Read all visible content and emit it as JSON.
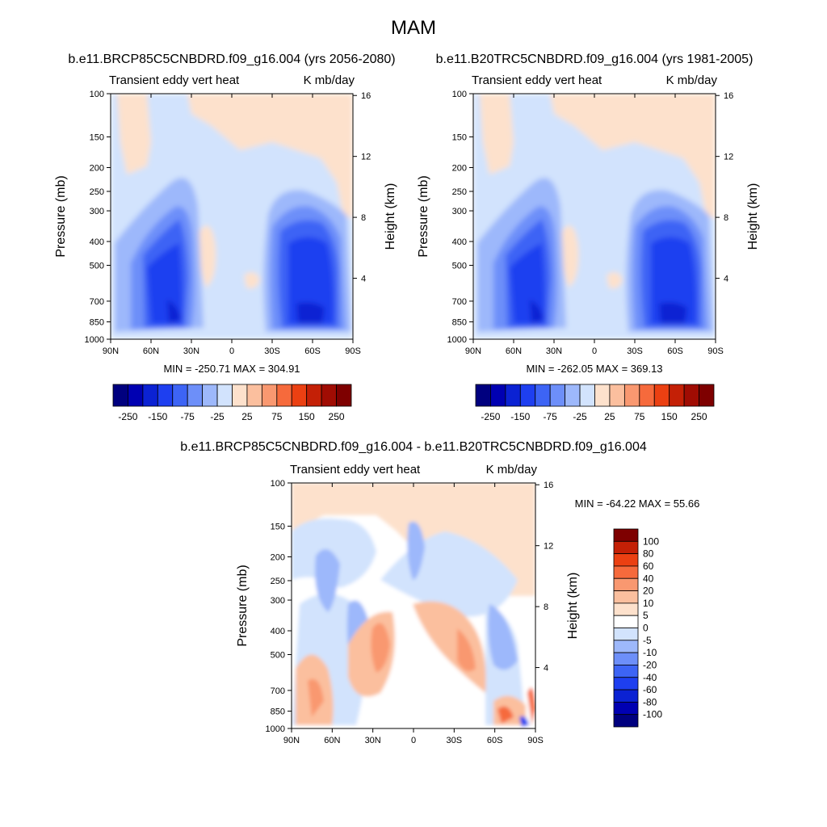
{
  "figure": {
    "title": "MAM"
  },
  "colors": {
    "levels_main": [
      "#00007f",
      "#0000b2",
      "#0b22d3",
      "#1e3ff0",
      "#3d64f5",
      "#6d8ff9",
      "#9db8fb",
      "#d2e3fd",
      "#fde1cc",
      "#fbbf9e",
      "#f99870",
      "#f66a3c",
      "#eb4012",
      "#c42006",
      "#a00c03",
      "#7e0000"
    ],
    "levels_diff": [
      "#00007f",
      "#0000b2",
      "#0b22d3",
      "#1e3ff0",
      "#3d64f5",
      "#6d8ff9",
      "#9db8fb",
      "#d2e3fd",
      "#ffffff",
      "#fde1cc",
      "#fbbf9e",
      "#f99870",
      "#f66a3c",
      "#eb4012",
      "#c42006",
      "#7e0000"
    ]
  },
  "chart_data": [
    {
      "type": "heatmap",
      "id": "left",
      "title": "b.e11.BRCP85C5CNBDRD.f09_g16.004 (yrs 2056-2080)",
      "subtitle_left": "Transient eddy vert heat",
      "subtitle_right": "K mb/day",
      "ylabel": "Pressure (mb)",
      "ylabel_right": "Height (km)",
      "x_ticks": [
        "90N",
        "60N",
        "30N",
        "0",
        "30S",
        "60S",
        "90S"
      ],
      "y_ticks": [
        "100",
        "150",
        "200",
        "250",
        "300",
        "400",
        "500",
        "700",
        "850",
        "1000"
      ],
      "y_right_ticks": [
        "16",
        "12",
        "8",
        "4"
      ],
      "minmax": "MIN = -250.71  MAX = 304.91",
      "colorbar_labels": [
        "-250",
        "-150",
        "-75",
        "-25",
        "25",
        "75",
        "150",
        "250"
      ],
      "value_range": [
        -250.71,
        304.91
      ]
    },
    {
      "type": "heatmap",
      "id": "right",
      "title": "b.e11.B20TRC5CNBDRD.f09_g16.004 (yrs 1981-2005)",
      "subtitle_left": "Transient eddy vert heat",
      "subtitle_right": "K mb/day",
      "ylabel": "Pressure (mb)",
      "ylabel_right": "Height (km)",
      "x_ticks": [
        "90N",
        "60N",
        "30N",
        "0",
        "30S",
        "60S",
        "90S"
      ],
      "y_ticks": [
        "100",
        "150",
        "200",
        "250",
        "300",
        "400",
        "500",
        "700",
        "850",
        "1000"
      ],
      "y_right_ticks": [
        "16",
        "12",
        "8",
        "4"
      ],
      "minmax": "MIN = -262.05  MAX = 369.13",
      "colorbar_labels": [
        "-250",
        "-150",
        "-75",
        "-25",
        "25",
        "75",
        "150",
        "250"
      ],
      "value_range": [
        -262.05,
        369.13
      ]
    },
    {
      "type": "heatmap",
      "id": "diff",
      "title": "b.e11.BRCP85C5CNBDRD.f09_g16.004 - b.e11.B20TRC5CNBDRD.f09_g16.004",
      "subtitle_left": "Transient eddy vert heat",
      "subtitle_right": "K mb/day",
      "ylabel": "Pressure (mb)",
      "ylabel_right": "Height (km)",
      "x_ticks": [
        "90N",
        "60N",
        "30N",
        "0",
        "30S",
        "60S",
        "90S"
      ],
      "y_ticks": [
        "100",
        "150",
        "200",
        "250",
        "300",
        "400",
        "500",
        "700",
        "850",
        "1000"
      ],
      "y_right_ticks": [
        "16",
        "12",
        "8",
        "4"
      ],
      "minmax": "MIN = -64.22  MAX =  55.66",
      "colorbar_labels": [
        "100",
        "80",
        "60",
        "40",
        "20",
        "10",
        "5",
        "0",
        "-5",
        "-10",
        "-20",
        "-40",
        "-60",
        "-80",
        "-100"
      ],
      "value_range": [
        -64.22,
        55.66
      ]
    }
  ]
}
